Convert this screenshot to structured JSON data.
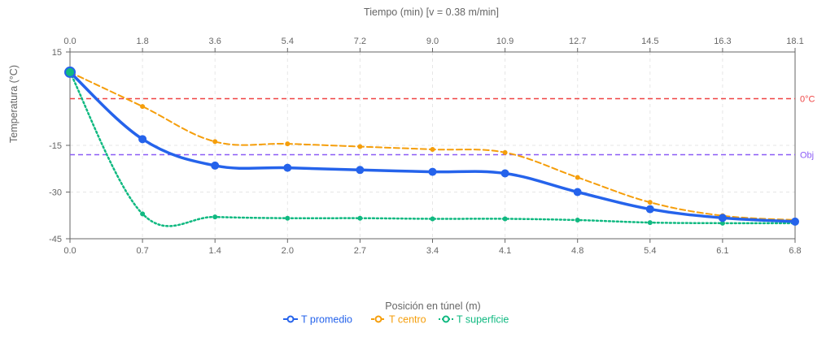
{
  "chart_data": {
    "type": "line",
    "top_axis_title": "Tiempo (min) [v = 0.38 m/min]",
    "xlabel": "Posición en túnel (m)",
    "ylabel": "Temperatura (°C)",
    "x_ticks": [
      "0.0",
      "0.7",
      "1.4",
      "2.0",
      "2.7",
      "3.4",
      "4.1",
      "4.8",
      "5.4",
      "6.1",
      "6.8"
    ],
    "top_ticks": [
      "0.0",
      "1.8",
      "3.6",
      "5.4",
      "7.2",
      "9.0",
      "10.9",
      "12.7",
      "14.5",
      "16.3",
      "18.1"
    ],
    "y_ticks": [
      "15",
      "-15",
      "-30",
      "-45"
    ],
    "y_tick_values": [
      15,
      -15,
      -30,
      -45
    ],
    "xlim": [
      0,
      6.8
    ],
    "ylim": [
      -45,
      15
    ],
    "grid": true,
    "legend_position": "bottom",
    "x": [
      0,
      0.68,
      1.36,
      2.04,
      2.72,
      3.4,
      4.08,
      4.76,
      5.44,
      6.12,
      6.8
    ],
    "series": [
      {
        "name": "T promedio",
        "color": "#2563eb",
        "style": "solid",
        "values": [
          8.5,
          -13.0,
          -21.5,
          -22.2,
          -22.9,
          -23.5,
          -24.0,
          -30.0,
          -35.5,
          -38.3,
          -39.5
        ]
      },
      {
        "name": "T centro",
        "color": "#f59e0b",
        "style": "dashed",
        "values": [
          8.5,
          -2.5,
          -13.8,
          -14.5,
          -15.4,
          -16.3,
          -17.3,
          -25.3,
          -33.3,
          -37.6,
          -39.0
        ]
      },
      {
        "name": "T superficie",
        "color": "#10b981",
        "style": "dotted",
        "values": [
          8.5,
          -37.0,
          -38.0,
          -38.4,
          -38.4,
          -38.6,
          -38.6,
          -39.0,
          -39.8,
          -40.0,
          -40.0
        ]
      }
    ],
    "reference_lines": [
      {
        "label": "0°C",
        "value": 0,
        "color": "#ef4444"
      },
      {
        "label": "Obj",
        "value": -18,
        "color": "#8b5cf6"
      }
    ]
  }
}
